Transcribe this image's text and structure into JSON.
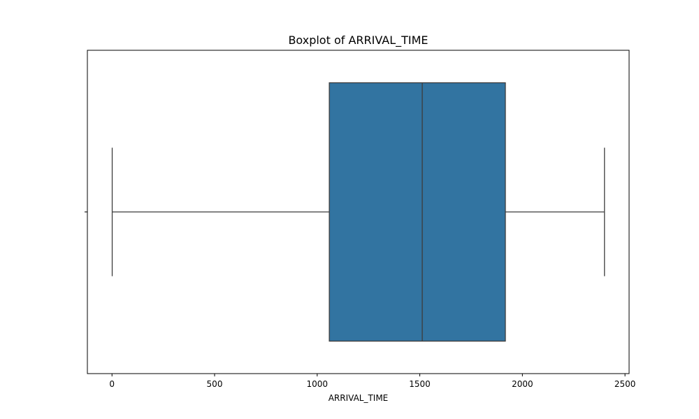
{
  "chart_data": {
    "type": "boxplot",
    "title": "Boxplot of ARRIVAL_TIME",
    "xlabel": "ARRIVAL_TIME",
    "ylabel": "",
    "xlim": [
      -120,
      2520
    ],
    "xticks": [
      0,
      500,
      1000,
      1500,
      2000,
      2500
    ],
    "grid": false,
    "legend": "none",
    "series": [
      {
        "min": 1,
        "q1": 1059,
        "median": 1512,
        "q3": 1917,
        "max": 2400
      }
    ],
    "colors": {
      "box": "#3274a1",
      "line": "#3d3d3d"
    }
  }
}
